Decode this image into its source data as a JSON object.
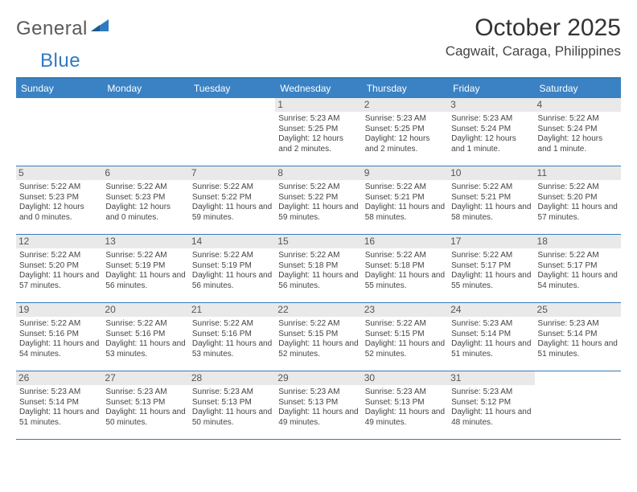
{
  "logo": {
    "text1": "General",
    "text2": "Blue"
  },
  "title": "October 2025",
  "location": "Cagwait, Caraga, Philippines",
  "colors": {
    "header_bg": "#3a82c4",
    "border": "#357ab7",
    "daynum_bg": "#e9e9e9",
    "text": "#444444",
    "logo_gray": "#5a5a5a",
    "logo_blue": "#2f7bbf"
  },
  "dayNames": [
    "Sunday",
    "Monday",
    "Tuesday",
    "Wednesday",
    "Thursday",
    "Friday",
    "Saturday"
  ],
  "weeks": [
    [
      {
        "n": "",
        "empty": true
      },
      {
        "n": "",
        "empty": true
      },
      {
        "n": "",
        "empty": true
      },
      {
        "n": "1",
        "sr": "5:23 AM",
        "ss": "5:25 PM",
        "dl": "12 hours and 2 minutes."
      },
      {
        "n": "2",
        "sr": "5:23 AM",
        "ss": "5:25 PM",
        "dl": "12 hours and 2 minutes."
      },
      {
        "n": "3",
        "sr": "5:23 AM",
        "ss": "5:24 PM",
        "dl": "12 hours and 1 minute."
      },
      {
        "n": "4",
        "sr": "5:22 AM",
        "ss": "5:24 PM",
        "dl": "12 hours and 1 minute."
      }
    ],
    [
      {
        "n": "5",
        "sr": "5:22 AM",
        "ss": "5:23 PM",
        "dl": "12 hours and 0 minutes."
      },
      {
        "n": "6",
        "sr": "5:22 AM",
        "ss": "5:23 PM",
        "dl": "12 hours and 0 minutes."
      },
      {
        "n": "7",
        "sr": "5:22 AM",
        "ss": "5:22 PM",
        "dl": "11 hours and 59 minutes."
      },
      {
        "n": "8",
        "sr": "5:22 AM",
        "ss": "5:22 PM",
        "dl": "11 hours and 59 minutes."
      },
      {
        "n": "9",
        "sr": "5:22 AM",
        "ss": "5:21 PM",
        "dl": "11 hours and 58 minutes."
      },
      {
        "n": "10",
        "sr": "5:22 AM",
        "ss": "5:21 PM",
        "dl": "11 hours and 58 minutes."
      },
      {
        "n": "11",
        "sr": "5:22 AM",
        "ss": "5:20 PM",
        "dl": "11 hours and 57 minutes."
      }
    ],
    [
      {
        "n": "12",
        "sr": "5:22 AM",
        "ss": "5:20 PM",
        "dl": "11 hours and 57 minutes."
      },
      {
        "n": "13",
        "sr": "5:22 AM",
        "ss": "5:19 PM",
        "dl": "11 hours and 56 minutes."
      },
      {
        "n": "14",
        "sr": "5:22 AM",
        "ss": "5:19 PM",
        "dl": "11 hours and 56 minutes."
      },
      {
        "n": "15",
        "sr": "5:22 AM",
        "ss": "5:18 PM",
        "dl": "11 hours and 56 minutes."
      },
      {
        "n": "16",
        "sr": "5:22 AM",
        "ss": "5:18 PM",
        "dl": "11 hours and 55 minutes."
      },
      {
        "n": "17",
        "sr": "5:22 AM",
        "ss": "5:17 PM",
        "dl": "11 hours and 55 minutes."
      },
      {
        "n": "18",
        "sr": "5:22 AM",
        "ss": "5:17 PM",
        "dl": "11 hours and 54 minutes."
      }
    ],
    [
      {
        "n": "19",
        "sr": "5:22 AM",
        "ss": "5:16 PM",
        "dl": "11 hours and 54 minutes."
      },
      {
        "n": "20",
        "sr": "5:22 AM",
        "ss": "5:16 PM",
        "dl": "11 hours and 53 minutes."
      },
      {
        "n": "21",
        "sr": "5:22 AM",
        "ss": "5:16 PM",
        "dl": "11 hours and 53 minutes."
      },
      {
        "n": "22",
        "sr": "5:22 AM",
        "ss": "5:15 PM",
        "dl": "11 hours and 52 minutes."
      },
      {
        "n": "23",
        "sr": "5:22 AM",
        "ss": "5:15 PM",
        "dl": "11 hours and 52 minutes."
      },
      {
        "n": "24",
        "sr": "5:23 AM",
        "ss": "5:14 PM",
        "dl": "11 hours and 51 minutes."
      },
      {
        "n": "25",
        "sr": "5:23 AM",
        "ss": "5:14 PM",
        "dl": "11 hours and 51 minutes."
      }
    ],
    [
      {
        "n": "26",
        "sr": "5:23 AM",
        "ss": "5:14 PM",
        "dl": "11 hours and 51 minutes."
      },
      {
        "n": "27",
        "sr": "5:23 AM",
        "ss": "5:13 PM",
        "dl": "11 hours and 50 minutes."
      },
      {
        "n": "28",
        "sr": "5:23 AM",
        "ss": "5:13 PM",
        "dl": "11 hours and 50 minutes."
      },
      {
        "n": "29",
        "sr": "5:23 AM",
        "ss": "5:13 PM",
        "dl": "11 hours and 49 minutes."
      },
      {
        "n": "30",
        "sr": "5:23 AM",
        "ss": "5:13 PM",
        "dl": "11 hours and 49 minutes."
      },
      {
        "n": "31",
        "sr": "5:23 AM",
        "ss": "5:12 PM",
        "dl": "11 hours and 48 minutes."
      },
      {
        "n": "",
        "empty": true
      }
    ]
  ],
  "labels": {
    "sunrise": "Sunrise: ",
    "sunset": "Sunset: ",
    "daylight": "Daylight: "
  }
}
